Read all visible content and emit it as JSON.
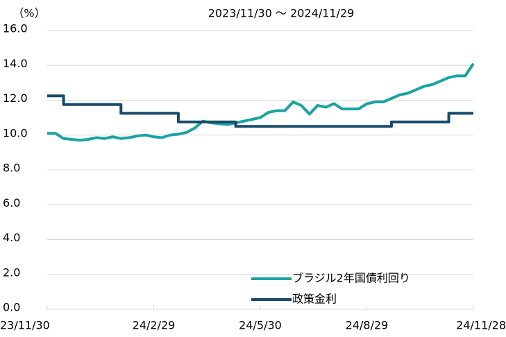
{
  "chart_data": {
    "type": "line",
    "title": "2023/11/30 ～ 2024/11/29",
    "y_unit": "（%）",
    "x": [
      "2023-11-30",
      "2023-12-07",
      "2023-12-14",
      "2023-12-21",
      "2023-12-28",
      "2024-01-04",
      "2024-01-11",
      "2024-01-18",
      "2024-01-25",
      "2024-02-01",
      "2024-02-08",
      "2024-02-15",
      "2024-02-22",
      "2024-02-29",
      "2024-03-07",
      "2024-03-14",
      "2024-03-21",
      "2024-03-28",
      "2024-04-04",
      "2024-04-11",
      "2024-04-18",
      "2024-04-25",
      "2024-05-02",
      "2024-05-09",
      "2024-05-16",
      "2024-05-23",
      "2024-05-30",
      "2024-06-06",
      "2024-06-13",
      "2024-06-20",
      "2024-06-27",
      "2024-07-04",
      "2024-07-11",
      "2024-07-18",
      "2024-07-25",
      "2024-08-01",
      "2024-08-08",
      "2024-08-15",
      "2024-08-22",
      "2024-08-29",
      "2024-09-05",
      "2024-09-12",
      "2024-09-19",
      "2024-09-26",
      "2024-10-03",
      "2024-10-10",
      "2024-10-17",
      "2024-10-24",
      "2024-10-31",
      "2024-11-07",
      "2024-11-14",
      "2024-11-21",
      "2024-11-28"
    ],
    "series": [
      {
        "name": "ブラジル2年国債利回り",
        "color": "#1aa3a0",
        "values": [
          10.1,
          10.1,
          9.8,
          9.75,
          9.7,
          9.75,
          9.85,
          9.8,
          9.9,
          9.8,
          9.85,
          9.95,
          10.0,
          9.9,
          9.85,
          10.0,
          10.05,
          10.15,
          10.4,
          10.8,
          10.7,
          10.65,
          10.6,
          10.7,
          10.8,
          10.9,
          11.0,
          11.3,
          11.4,
          11.4,
          11.9,
          11.7,
          11.2,
          11.7,
          11.6,
          11.8,
          11.5,
          11.5,
          11.5,
          11.8,
          11.9,
          11.9,
          12.1,
          12.3,
          12.4,
          12.6,
          12.8,
          12.9,
          13.1,
          13.3,
          13.4,
          13.4,
          14.1
        ]
      },
      {
        "name": "政策金利",
        "color": "#174a6b",
        "step": true,
        "values": [
          12.25,
          12.25,
          11.75,
          11.75,
          11.75,
          11.75,
          11.75,
          11.75,
          11.75,
          11.25,
          11.25,
          11.25,
          11.25,
          11.25,
          11.25,
          11.25,
          10.75,
          10.75,
          10.75,
          10.75,
          10.75,
          10.75,
          10.75,
          10.5,
          10.5,
          10.5,
          10.5,
          10.5,
          10.5,
          10.5,
          10.5,
          10.5,
          10.5,
          10.5,
          10.5,
          10.5,
          10.5,
          10.5,
          10.5,
          10.5,
          10.5,
          10.5,
          10.75,
          10.75,
          10.75,
          10.75,
          10.75,
          10.75,
          10.75,
          11.25,
          11.25,
          11.25,
          11.25
        ]
      }
    ],
    "xlim": [
      "2023-11-30",
      "2024-11-28"
    ],
    "xticks": [
      {
        "value": "2023-11-30",
        "label": "23/11/30"
      },
      {
        "value": "2024-02-29",
        "label": "24/2/29"
      },
      {
        "value": "2024-05-30",
        "label": "24/5/30"
      },
      {
        "value": "2024-08-29",
        "label": "24/8/29"
      },
      {
        "value": "2024-11-28",
        "label": "24/11/28"
      }
    ],
    "ylim": [
      0,
      16
    ],
    "yticks": [
      {
        "value": 0,
        "label": "0.0"
      },
      {
        "value": 2,
        "label": "2.0"
      },
      {
        "value": 4,
        "label": "4.0"
      },
      {
        "value": 6,
        "label": "6.0"
      },
      {
        "value": 8,
        "label": "8.0"
      },
      {
        "value": 10,
        "label": "10.0"
      },
      {
        "value": 12,
        "label": "12.0"
      },
      {
        "value": 14,
        "label": "14.0"
      },
      {
        "value": 16,
        "label": "16.0"
      }
    ],
    "grid": true
  }
}
